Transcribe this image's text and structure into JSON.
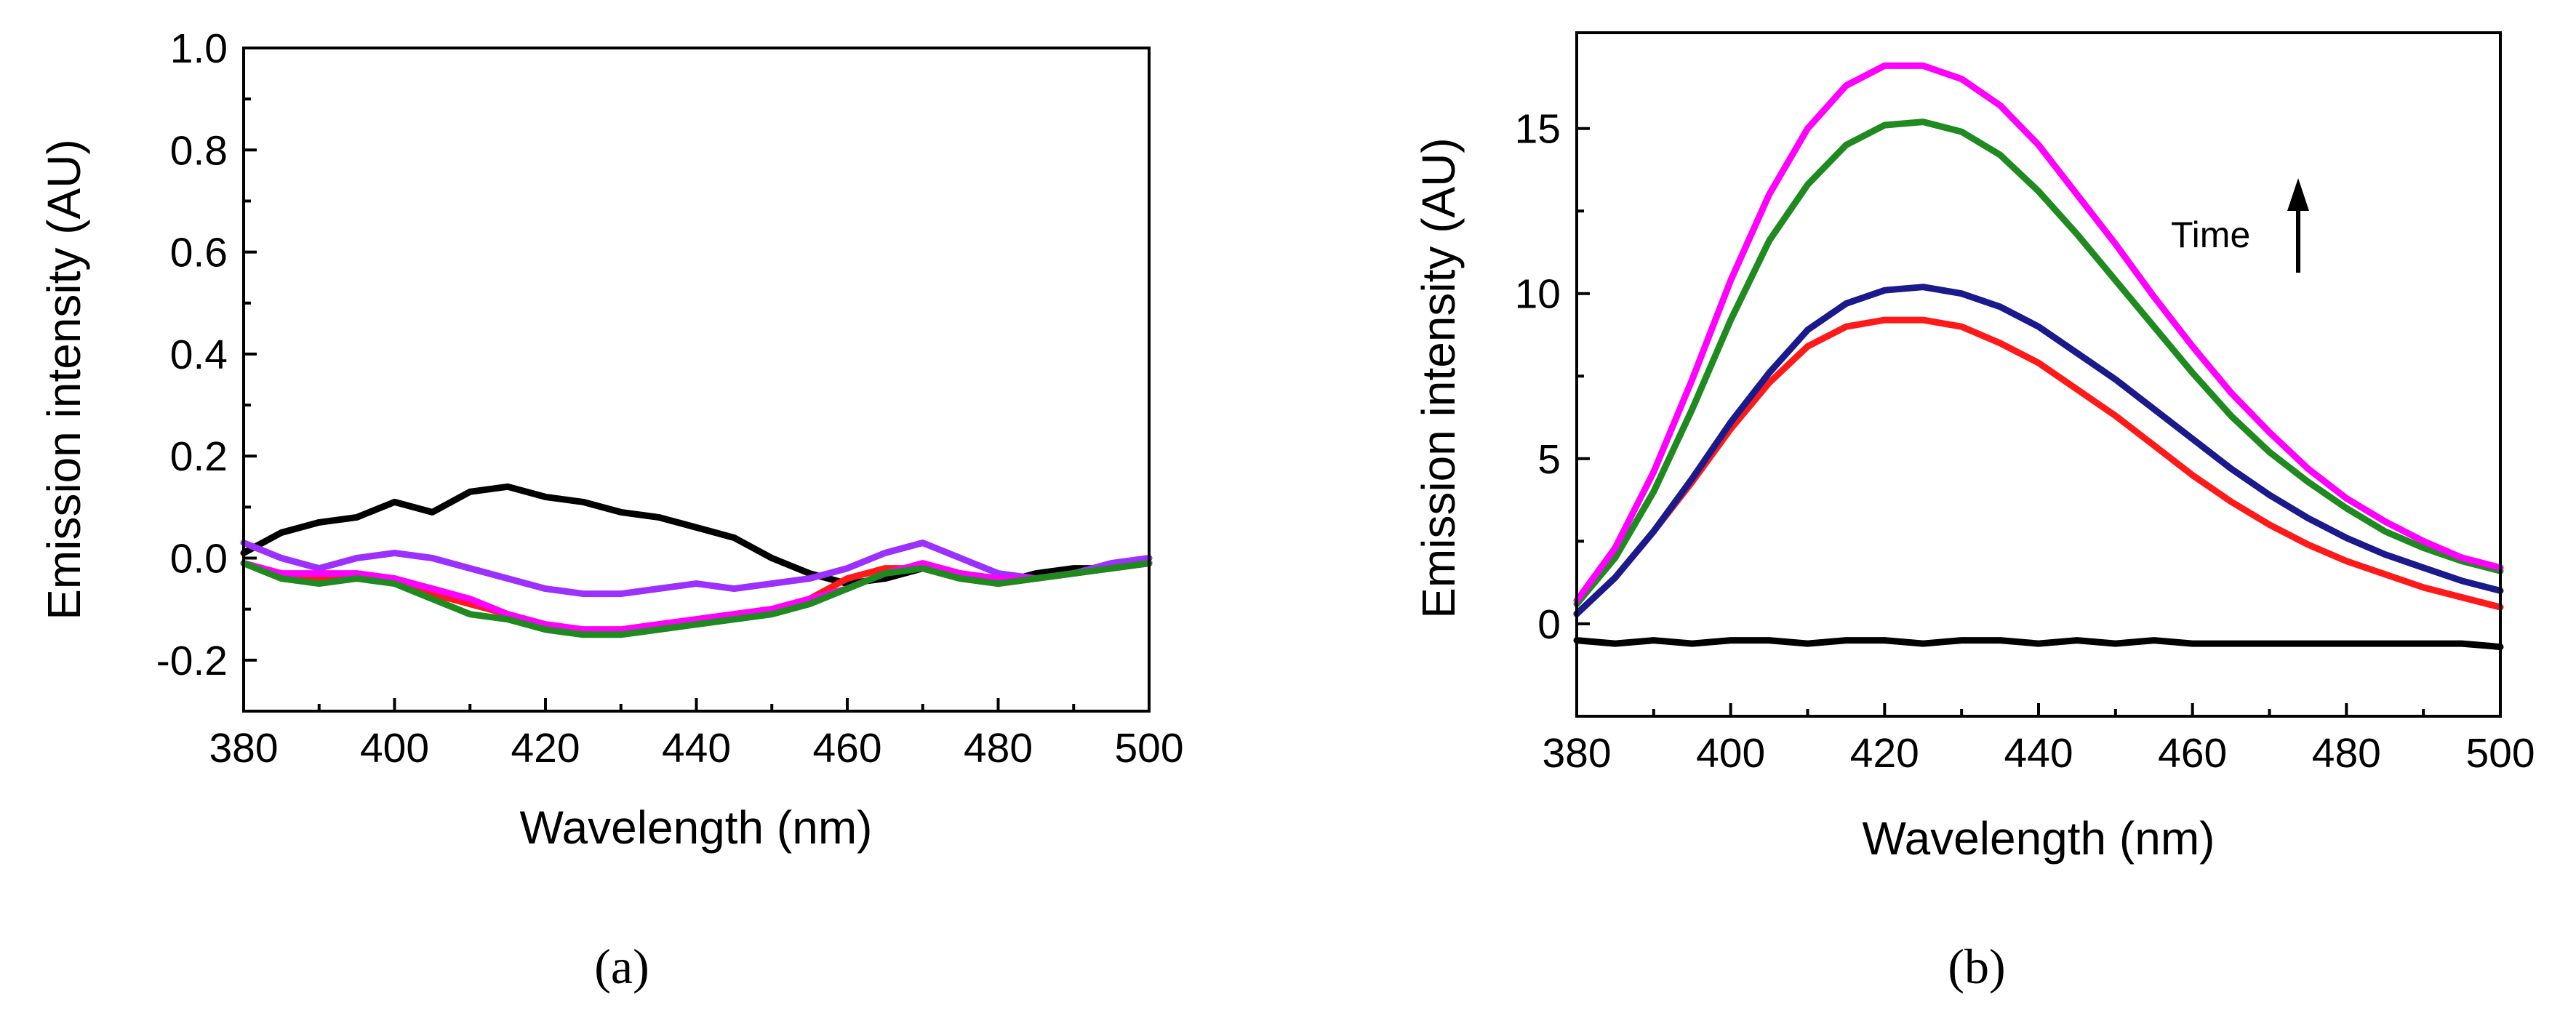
{
  "chart_data": [
    {
      "panel": "a",
      "type": "line",
      "caption": "(a)",
      "xlabel": "Wavelength (nm)",
      "ylabel": "Emission intensity (AU)",
      "xlim": [
        380,
        500
      ],
      "ylim": [
        -0.3,
        1.0
      ],
      "xticks": [
        "380",
        "400",
        "420",
        "440",
        "460",
        "480",
        "500"
      ],
      "yticks": [
        "-0.2",
        "0.0",
        "0.2",
        "0.4",
        "0.6",
        "0.8",
        "1.0"
      ],
      "x": [
        380,
        385,
        390,
        395,
        400,
        405,
        410,
        415,
        420,
        425,
        430,
        435,
        440,
        445,
        450,
        455,
        460,
        465,
        470,
        475,
        480,
        485,
        490,
        495,
        500
      ],
      "series": [
        {
          "name": "black",
          "color": "#000000",
          "values": [
            0.01,
            0.05,
            0.07,
            0.08,
            0.11,
            0.09,
            0.13,
            0.14,
            0.12,
            0.11,
            0.09,
            0.08,
            0.06,
            0.04,
            0.0,
            -0.03,
            -0.05,
            -0.04,
            -0.02,
            -0.04,
            -0.05,
            -0.03,
            -0.02,
            -0.02,
            -0.01
          ]
        },
        {
          "name": "purple",
          "color": "#9b30ff",
          "values": [
            0.03,
            0.0,
            -0.02,
            0.0,
            0.01,
            0.0,
            -0.02,
            -0.04,
            -0.06,
            -0.07,
            -0.07,
            -0.06,
            -0.05,
            -0.06,
            -0.05,
            -0.04,
            -0.02,
            0.01,
            0.03,
            0.0,
            -0.03,
            -0.04,
            -0.03,
            -0.01,
            0.0
          ]
        },
        {
          "name": "red",
          "color": "#ff1a1a",
          "values": [
            -0.01,
            -0.03,
            -0.04,
            -0.04,
            -0.04,
            -0.07,
            -0.09,
            -0.11,
            -0.13,
            -0.14,
            -0.14,
            -0.13,
            -0.12,
            -0.11,
            -0.1,
            -0.08,
            -0.04,
            -0.02,
            -0.02,
            -0.04,
            -0.05,
            -0.04,
            -0.03,
            -0.02,
            -0.01
          ]
        },
        {
          "name": "magenta",
          "color": "#ff00ff",
          "values": [
            -0.01,
            -0.03,
            -0.03,
            -0.03,
            -0.04,
            -0.06,
            -0.08,
            -0.11,
            -0.13,
            -0.14,
            -0.14,
            -0.13,
            -0.12,
            -0.11,
            -0.1,
            -0.08,
            -0.06,
            -0.03,
            -0.01,
            -0.03,
            -0.04,
            -0.04,
            -0.03,
            -0.02,
            -0.01
          ]
        },
        {
          "name": "green",
          "color": "#1f8a1f",
          "values": [
            -0.01,
            -0.04,
            -0.05,
            -0.04,
            -0.05,
            -0.08,
            -0.11,
            -0.12,
            -0.14,
            -0.15,
            -0.15,
            -0.14,
            -0.13,
            -0.12,
            -0.11,
            -0.09,
            -0.06,
            -0.03,
            -0.02,
            -0.04,
            -0.05,
            -0.04,
            -0.03,
            -0.02,
            -0.01
          ]
        }
      ]
    },
    {
      "panel": "b",
      "type": "line",
      "caption": "(b)",
      "xlabel": "Wavelength (nm)",
      "ylabel": "Emission intensity (AU)",
      "xlim": [
        380,
        500
      ],
      "ylim": [
        -2.8,
        17.9
      ],
      "xticks": [
        "380",
        "400",
        "420",
        "440",
        "460",
        "480",
        "500"
      ],
      "yticks": [
        "0",
        "5",
        "10",
        "15"
      ],
      "annotation": {
        "text": "Time",
        "arrow": "up"
      },
      "x": [
        380,
        385,
        390,
        395,
        400,
        405,
        410,
        415,
        420,
        425,
        430,
        435,
        440,
        445,
        450,
        455,
        460,
        465,
        470,
        475,
        480,
        485,
        490,
        495,
        500
      ],
      "series": [
        {
          "name": "black",
          "color": "#000000",
          "values": [
            -0.5,
            -0.6,
            -0.5,
            -0.6,
            -0.5,
            -0.5,
            -0.6,
            -0.5,
            -0.5,
            -0.6,
            -0.5,
            -0.5,
            -0.6,
            -0.5,
            -0.6,
            -0.5,
            -0.6,
            -0.6,
            -0.6,
            -0.6,
            -0.6,
            -0.6,
            -0.6,
            -0.6,
            -0.7
          ]
        },
        {
          "name": "red",
          "color": "#ff1a1a",
          "values": [
            0.3,
            1.4,
            2.8,
            4.3,
            5.9,
            7.3,
            8.4,
            9.0,
            9.2,
            9.2,
            9.0,
            8.5,
            7.9,
            7.1,
            6.3,
            5.4,
            4.5,
            3.7,
            3.0,
            2.4,
            1.9,
            1.5,
            1.1,
            0.8,
            0.5
          ]
        },
        {
          "name": "navy",
          "color": "#1a1a8c",
          "values": [
            0.3,
            1.4,
            2.8,
            4.4,
            6.1,
            7.6,
            8.9,
            9.7,
            10.1,
            10.2,
            10.0,
            9.6,
            9.0,
            8.2,
            7.4,
            6.5,
            5.6,
            4.7,
            3.9,
            3.2,
            2.6,
            2.1,
            1.7,
            1.3,
            1.0
          ]
        },
        {
          "name": "green",
          "color": "#1f8a1f",
          "values": [
            0.6,
            2.0,
            4.0,
            6.5,
            9.2,
            11.6,
            13.3,
            14.5,
            15.1,
            15.2,
            14.9,
            14.2,
            13.1,
            11.8,
            10.4,
            9.0,
            7.6,
            6.3,
            5.2,
            4.3,
            3.5,
            2.8,
            2.3,
            1.9,
            1.6
          ]
        },
        {
          "name": "magenta",
          "color": "#ff00ff",
          "values": [
            0.7,
            2.3,
            4.6,
            7.4,
            10.4,
            13.0,
            15.0,
            16.3,
            16.9,
            16.9,
            16.5,
            15.7,
            14.5,
            13.0,
            11.5,
            9.9,
            8.4,
            7.0,
            5.8,
            4.7,
            3.8,
            3.1,
            2.5,
            2.0,
            1.7
          ]
        }
      ]
    }
  ]
}
